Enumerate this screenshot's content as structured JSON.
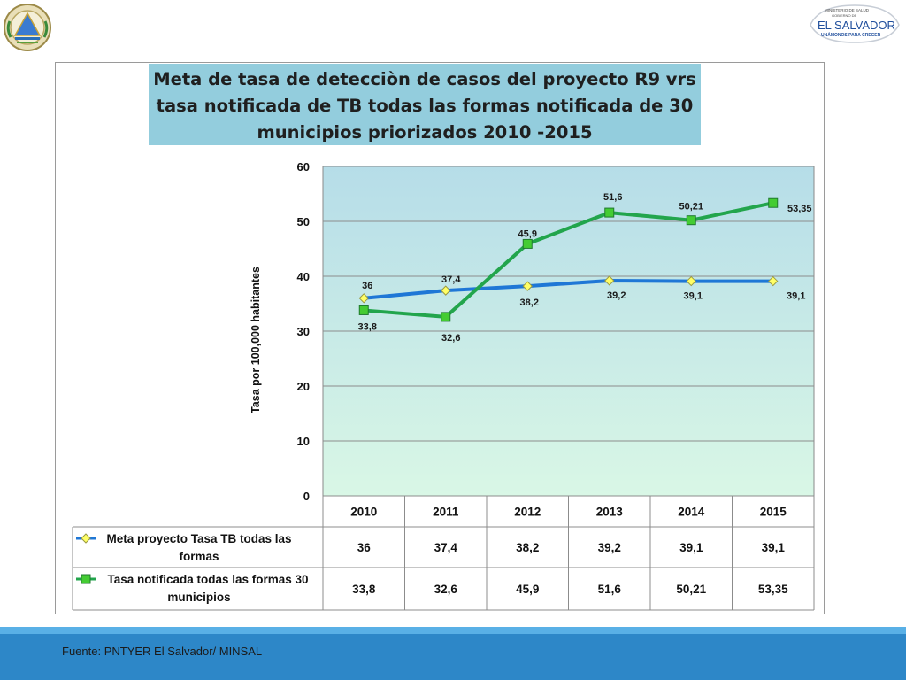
{
  "chart_data": {
    "type": "line",
    "title": "Meta de  tasa de detecciòn de casos del proyecto R9  vrs tasa notificada de TB todas las formas notificada de 30 municipios priorizados  2010 -2015",
    "ylabel": "Tasa por 100,000 habitantes",
    "xlabel": "",
    "ylim": [
      0,
      60
    ],
    "yticks": [
      0,
      10,
      20,
      30,
      40,
      50,
      60
    ],
    "grid": true,
    "legend": "data-table-below",
    "categories": [
      "2010",
      "2011",
      "2012",
      "2013",
      "2014",
      "2015"
    ],
    "series": [
      {
        "name": "Meta proyecto Tasa TB todas las formas",
        "values": [
          36,
          37.4,
          38.2,
          39.2,
          39.1,
          39.1
        ],
        "labels": [
          "36",
          "37,4",
          "38,2",
          "39,2",
          "39,1",
          "39,1"
        ],
        "color": "#1f77d6",
        "marker": "diamond",
        "marker_color": "#ffff66"
      },
      {
        "name": "Tasa notificada todas las formas 30 municipios",
        "values": [
          33.8,
          32.6,
          45.9,
          51.6,
          50.21,
          53.35
        ],
        "labels": [
          "33,8",
          "32,6",
          "45,9",
          "51,6",
          "50,21",
          "53,35"
        ],
        "color": "#22a54c",
        "marker": "square",
        "marker_color": "#44cc33"
      }
    ]
  },
  "footer": {
    "source": "Fuente:  PNTYER El Salvador/ MINSAL"
  },
  "logos": {
    "left": "national-coat-of-arms",
    "right": {
      "small_text": "MINISTERIO DE SALUD",
      "gov_text": "GOBIERNO DE",
      "name": "EL SALVADOR",
      "slogan": "UNÁMONOS PARA CRECER"
    }
  },
  "colors": {
    "title_bg": "#93cddd",
    "plot_top": "#b6dde8",
    "plot_bottom": "#d9f7e6",
    "footer": "#2d87c8"
  }
}
